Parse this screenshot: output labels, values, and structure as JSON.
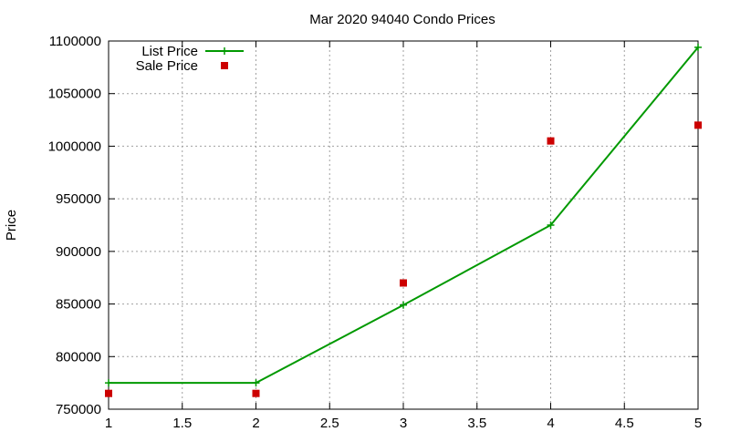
{
  "chart_data": {
    "type": "line",
    "title": "Mar 2020 94040 Condo Prices",
    "xlabel": "",
    "ylabel": "Price",
    "xlim": [
      1,
      5
    ],
    "ylim": [
      750000,
      1100000
    ],
    "x_ticks": [
      1,
      1.5,
      2,
      2.5,
      3,
      3.5,
      4,
      4.5,
      5
    ],
    "x_tick_labels": [
      "1",
      "1.5",
      "2",
      "2.5",
      "3",
      "3.5",
      "4",
      "4.5",
      "5"
    ],
    "y_ticks": [
      750000,
      800000,
      850000,
      900000,
      950000,
      1000000,
      1050000,
      1100000
    ],
    "y_tick_labels": [
      "750000",
      "800000",
      "850000",
      "900000",
      "950000",
      "1000000",
      "1050000",
      "1100000"
    ],
    "grid": true,
    "legend_position": "top-left",
    "series": [
      {
        "name": "List Price",
        "style": "line-with-plus-markers",
        "color": "#009900",
        "x": [
          1,
          2,
          3,
          4,
          5
        ],
        "values": [
          775000,
          775000,
          849000,
          925000,
          1094000
        ]
      },
      {
        "name": "Sale Price",
        "style": "square-markers",
        "color": "#cc0000",
        "x": [
          1,
          2,
          3,
          4,
          5
        ],
        "values": [
          765000,
          765000,
          870000,
          1005000,
          1020000
        ]
      }
    ]
  }
}
